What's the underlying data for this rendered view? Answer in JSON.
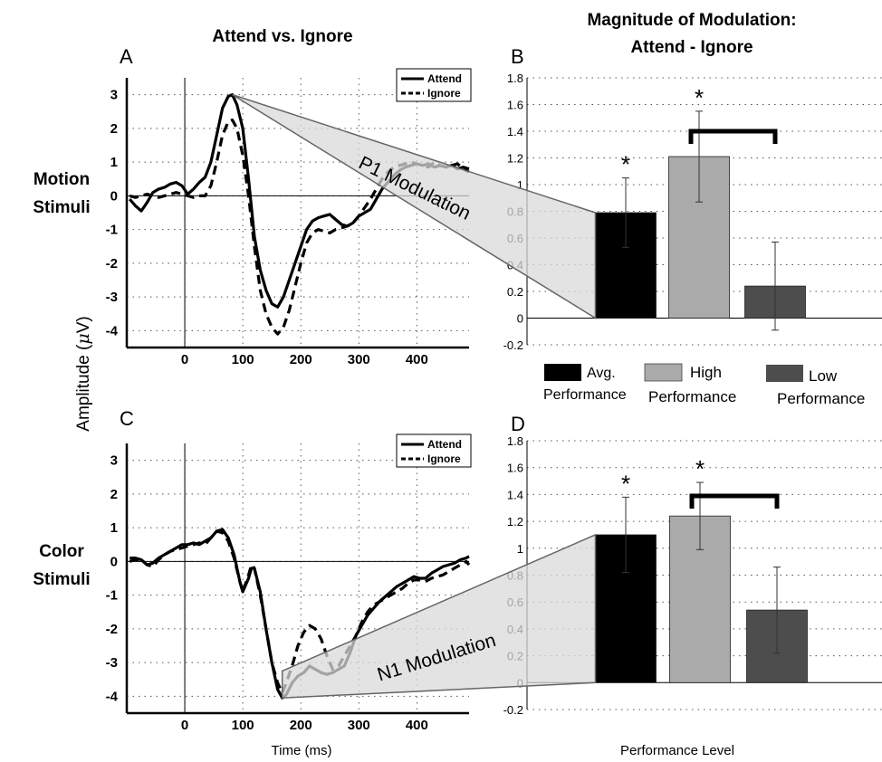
{
  "titles": {
    "left": "Attend vs. Ignore",
    "right_line1": "Magnitude of Modulation:",
    "right_line2": "Attend - Ignore"
  },
  "row_labels": {
    "motion_line1": "Motion",
    "motion_line2": "Stimuli",
    "color_line1": "Color",
    "color_line2": "Stimuli"
  },
  "shared_labels": {
    "ylabel_prefix": "Amplitude (",
    "ylabel_mu": "μ",
    "ylabel_suffix": "V)",
    "xlabel_waves": "Time (ms)",
    "xlabel_bars": "Performance Level"
  },
  "bar_legend": [
    {
      "line1": "Avg.",
      "line2": "Performance",
      "color": "#000000"
    },
    {
      "line1": "High",
      "line2": "Performance",
      "color": "#aaaaaa"
    },
    {
      "line1": "Low",
      "line2": "Performance",
      "color": "#4d4d4d"
    }
  ],
  "modulation_labels": {
    "p1": "P1 Modulation",
    "n1": "N1 Modulation"
  },
  "colors": {
    "attend": "#000000",
    "ignore": "#000000",
    "highlight": "#9a9a9a",
    "wedge_fill": "#d9d9d9",
    "wedge_stroke": "#666666",
    "grid": "#555555"
  },
  "chart_data": [
    {
      "panel": "A",
      "type": "line",
      "x_ticks": [
        0,
        100,
        200,
        300,
        400
      ],
      "y_ticks": [
        -4,
        -3,
        -2,
        -1,
        0,
        1,
        2,
        3
      ],
      "xlim": [
        -100,
        490
      ],
      "ylim": [
        -4.5,
        3.5
      ],
      "legend": [
        "Attend",
        "Ignore"
      ],
      "legend_position": "top-right",
      "grid": true,
      "series": [
        {
          "name": "Attend",
          "style": "solid",
          "x": [
            -95,
            -85,
            -75,
            -65,
            -55,
            -45,
            -35,
            -25,
            -15,
            -5,
            5,
            15,
            25,
            35,
            45,
            55,
            65,
            75,
            82,
            90,
            100,
            110,
            120,
            130,
            140,
            150,
            160,
            170,
            180,
            190,
            200,
            210,
            220,
            230,
            240,
            250,
            260,
            270,
            280,
            290,
            300,
            310,
            320,
            330,
            340,
            350,
            360,
            370,
            380,
            390,
            400,
            410,
            420,
            430,
            440,
            450,
            460,
            470,
            480,
            490
          ],
          "y": [
            -0.1,
            -0.3,
            -0.45,
            -0.2,
            0.1,
            0.2,
            0.25,
            0.35,
            0.4,
            0.3,
            0.05,
            0.2,
            0.4,
            0.55,
            1.0,
            1.8,
            2.6,
            2.95,
            3.0,
            2.7,
            2.0,
            0.5,
            -1.2,
            -2.2,
            -2.8,
            -3.2,
            -3.3,
            -3.0,
            -2.5,
            -2.0,
            -1.5,
            -1.0,
            -0.75,
            -0.65,
            -0.6,
            -0.55,
            -0.7,
            -0.85,
            -0.9,
            -0.8,
            -0.6,
            -0.5,
            -0.4,
            -0.1,
            0.2,
            0.4,
            0.6,
            0.75,
            0.85,
            0.9,
            0.95,
            0.9,
            0.95,
            0.85,
            0.9,
            0.85,
            0.9,
            0.8,
            0.85,
            0.8
          ]
        },
        {
          "name": "Ignore",
          "style": "dashed",
          "x": [
            -95,
            -85,
            -75,
            -65,
            -55,
            -45,
            -35,
            -25,
            -15,
            -5,
            5,
            15,
            25,
            35,
            45,
            55,
            65,
            75,
            82,
            90,
            100,
            110,
            120,
            130,
            140,
            150,
            160,
            170,
            180,
            190,
            200,
            210,
            220,
            230,
            240,
            250,
            260,
            270,
            280,
            290,
            300,
            310,
            320,
            330,
            340,
            350,
            360,
            370,
            380,
            390,
            400,
            410,
            420,
            430,
            440,
            450,
            460,
            470,
            480,
            490
          ],
          "y": [
            0.0,
            -0.05,
            0.0,
            0.05,
            0.0,
            -0.05,
            0.0,
            0.05,
            0.1,
            0.05,
            0.0,
            -0.05,
            0.0,
            0.0,
            0.3,
            1.0,
            1.8,
            2.2,
            2.25,
            2.0,
            1.2,
            0.0,
            -1.5,
            -2.8,
            -3.5,
            -3.9,
            -4.1,
            -3.9,
            -3.4,
            -2.7,
            -2.0,
            -1.4,
            -1.1,
            -1.0,
            -1.05,
            -1.1,
            -1.0,
            -0.95,
            -0.9,
            -0.8,
            -0.6,
            -0.35,
            -0.1,
            0.2,
            0.5,
            0.7,
            0.85,
            0.9,
            0.95,
            1.0,
            0.95,
            0.9,
            0.85,
            1.0,
            0.9,
            0.85,
            0.9,
            0.95,
            0.8,
            0.7
          ]
        }
      ]
    },
    {
      "panel": "B",
      "type": "bar",
      "categories": [
        "Avg. Performance",
        "High Performance",
        "Low Performance"
      ],
      "values": [
        0.79,
        1.21,
        0.24
      ],
      "errors": [
        0.26,
        0.34,
        0.33
      ],
      "significant": [
        true,
        true,
        false
      ],
      "bracket": {
        "from": 1,
        "to": 2
      },
      "y_ticks": [
        -0.2,
        0,
        0.2,
        0.4,
        0.6,
        0.8,
        1,
        1.2,
        1.4,
        1.6,
        1.8
      ],
      "ylim": [
        -0.2,
        1.8
      ],
      "grid": true
    },
    {
      "panel": "C",
      "type": "line",
      "x_ticks": [
        0,
        100,
        200,
        300,
        400
      ],
      "y_ticks": [
        -4,
        -3,
        -2,
        -1,
        0,
        1,
        2,
        3
      ],
      "xlim": [
        -100,
        490
      ],
      "ylim": [
        -4.5,
        3.5
      ],
      "legend": [
        "Attend",
        "Ignore"
      ],
      "legend_position": "top-right",
      "grid": true,
      "series": [
        {
          "name": "Attend",
          "style": "solid",
          "x": [
            -95,
            -85,
            -75,
            -65,
            -55,
            -45,
            -35,
            -25,
            -15,
            -5,
            5,
            15,
            25,
            35,
            45,
            55,
            65,
            75,
            85,
            95,
            100,
            110,
            115,
            120,
            130,
            140,
            150,
            160,
            168,
            175,
            185,
            195,
            205,
            215,
            225,
            235,
            245,
            255,
            265,
            275,
            285,
            295,
            305,
            315,
            325,
            335,
            345,
            355,
            365,
            375,
            385,
            395,
            405,
            415,
            425,
            435,
            445,
            455,
            465,
            475,
            485,
            490
          ],
          "y": [
            0.1,
            0.1,
            0.05,
            -0.1,
            -0.05,
            0.1,
            0.2,
            0.3,
            0.4,
            0.5,
            0.5,
            0.55,
            0.5,
            0.6,
            0.7,
            0.9,
            0.95,
            0.7,
            0.2,
            -0.6,
            -0.9,
            -0.5,
            -0.2,
            -0.2,
            -0.9,
            -2.0,
            -3.0,
            -3.8,
            -4.05,
            -3.95,
            -3.6,
            -3.4,
            -3.3,
            -3.1,
            -3.2,
            -3.3,
            -3.35,
            -3.3,
            -3.2,
            -3.1,
            -2.7,
            -2.2,
            -1.9,
            -1.6,
            -1.4,
            -1.2,
            -1.05,
            -0.9,
            -0.75,
            -0.65,
            -0.55,
            -0.45,
            -0.5,
            -0.5,
            -0.35,
            -0.25,
            -0.15,
            -0.1,
            -0.05,
            0.05,
            0.1,
            0.15
          ]
        },
        {
          "name": "Ignore",
          "style": "dashed",
          "x": [
            -95,
            -85,
            -75,
            -65,
            -55,
            -45,
            -35,
            -25,
            -15,
            -5,
            5,
            15,
            25,
            35,
            45,
            55,
            65,
            75,
            85,
            95,
            100,
            110,
            115,
            120,
            130,
            140,
            150,
            160,
            168,
            175,
            185,
            195,
            205,
            215,
            225,
            235,
            245,
            255,
            265,
            275,
            285,
            295,
            305,
            315,
            325,
            335,
            345,
            355,
            365,
            375,
            385,
            395,
            405,
            415,
            425,
            435,
            445,
            455,
            465,
            475,
            485,
            490
          ],
          "y": [
            0.0,
            0.05,
            0.05,
            -0.1,
            -0.15,
            0.05,
            0.2,
            0.3,
            0.35,
            0.4,
            0.45,
            0.5,
            0.55,
            0.5,
            0.7,
            0.9,
            0.85,
            0.6,
            0.1,
            -0.6,
            -0.9,
            -0.4,
            -0.1,
            -0.2,
            -1.0,
            -2.0,
            -3.0,
            -3.6,
            -3.9,
            -3.6,
            -3.1,
            -2.5,
            -2.1,
            -1.9,
            -2.0,
            -2.3,
            -2.8,
            -3.2,
            -3.1,
            -2.8,
            -2.5,
            -2.2,
            -1.8,
            -1.5,
            -1.3,
            -1.2,
            -1.1,
            -1.0,
            -0.9,
            -0.8,
            -0.65,
            -0.55,
            -0.55,
            -0.6,
            -0.5,
            -0.45,
            -0.4,
            -0.3,
            -0.2,
            -0.1,
            0.0,
            -0.1
          ]
        }
      ]
    },
    {
      "panel": "D",
      "type": "bar",
      "categories": [
        "Avg. Performance",
        "High Performance",
        "Low Performance"
      ],
      "values": [
        1.1,
        1.24,
        0.54
      ],
      "errors": [
        0.28,
        0.25,
        0.32
      ],
      "significant": [
        true,
        true,
        false
      ],
      "bracket": {
        "from": 1,
        "to": 2
      },
      "y_ticks": [
        -0.2,
        0,
        0.2,
        0.4,
        0.6,
        0.8,
        1,
        1.2,
        1.4,
        1.6,
        1.8
      ],
      "ylim": [
        -0.2,
        1.8
      ],
      "grid": true
    }
  ]
}
